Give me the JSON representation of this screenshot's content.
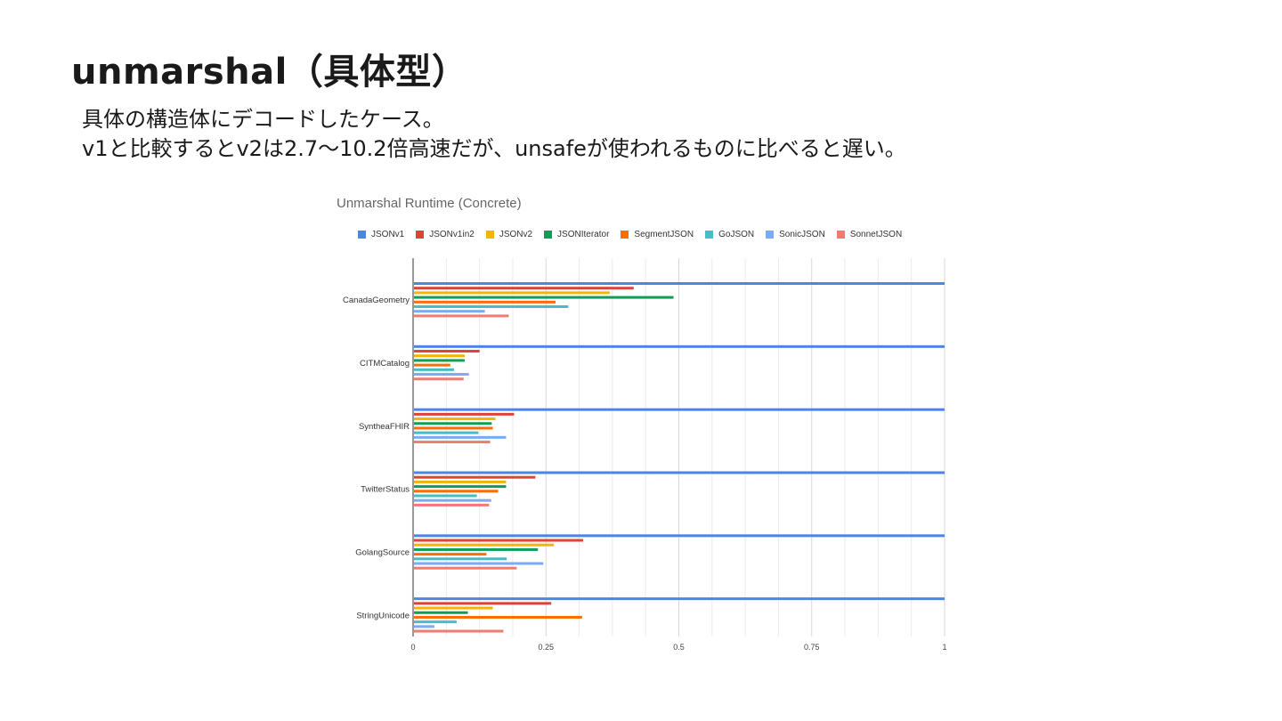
{
  "slide": {
    "title": "unmarshal（具体型）",
    "lines": [
      "具体の構造体にデコードしたケース。",
      "v1と比較するとv2は2.7〜10.2倍高速だが、unsafeが使われるものに比べると遅い。"
    ]
  },
  "chart_data": {
    "type": "bar",
    "orientation": "horizontal",
    "title": "Unmarshal Runtime (Concrete)",
    "xlabel": "",
    "ylabel": "",
    "xlim": [
      0,
      1
    ],
    "xticks": [
      "0",
      "0.25",
      "0.5",
      "0.75",
      "1"
    ],
    "grid": true,
    "legend_position": "top",
    "categories": [
      "CanadaGeometry",
      "CITMCatalog",
      "SyntheaFHIR",
      "TwitterStatus",
      "GolangSource",
      "StringUnicode"
    ],
    "series": [
      {
        "name": "JSONv1",
        "color": "#4a86e8",
        "values": [
          1.0,
          1.0,
          1.0,
          1.0,
          1.0,
          1.0
        ]
      },
      {
        "name": "JSONv1in2",
        "color": "#db4437",
        "values": [
          0.415,
          0.125,
          0.19,
          0.23,
          0.32,
          0.26
        ]
      },
      {
        "name": "JSONv2",
        "color": "#f4b400",
        "values": [
          0.37,
          0.097,
          0.155,
          0.175,
          0.265,
          0.15
        ]
      },
      {
        "name": "JSONIterator",
        "color": "#0f9d58",
        "values": [
          0.49,
          0.097,
          0.148,
          0.175,
          0.235,
          0.103
        ]
      },
      {
        "name": "SegmentJSON",
        "color": "#ff6d01",
        "values": [
          0.268,
          0.07,
          0.15,
          0.16,
          0.138,
          0.318
        ]
      },
      {
        "name": "GoJSON",
        "color": "#46bdc6",
        "values": [
          0.292,
          0.077,
          0.123,
          0.12,
          0.176,
          0.082
        ]
      },
      {
        "name": "SonicJSON",
        "color": "#7baaf7",
        "values": [
          0.135,
          0.105,
          0.175,
          0.147,
          0.245,
          0.04
        ]
      },
      {
        "name": "SonnetJSON",
        "color": "#f07b72",
        "values": [
          0.18,
          0.095,
          0.145,
          0.143,
          0.195,
          0.17
        ]
      }
    ]
  }
}
